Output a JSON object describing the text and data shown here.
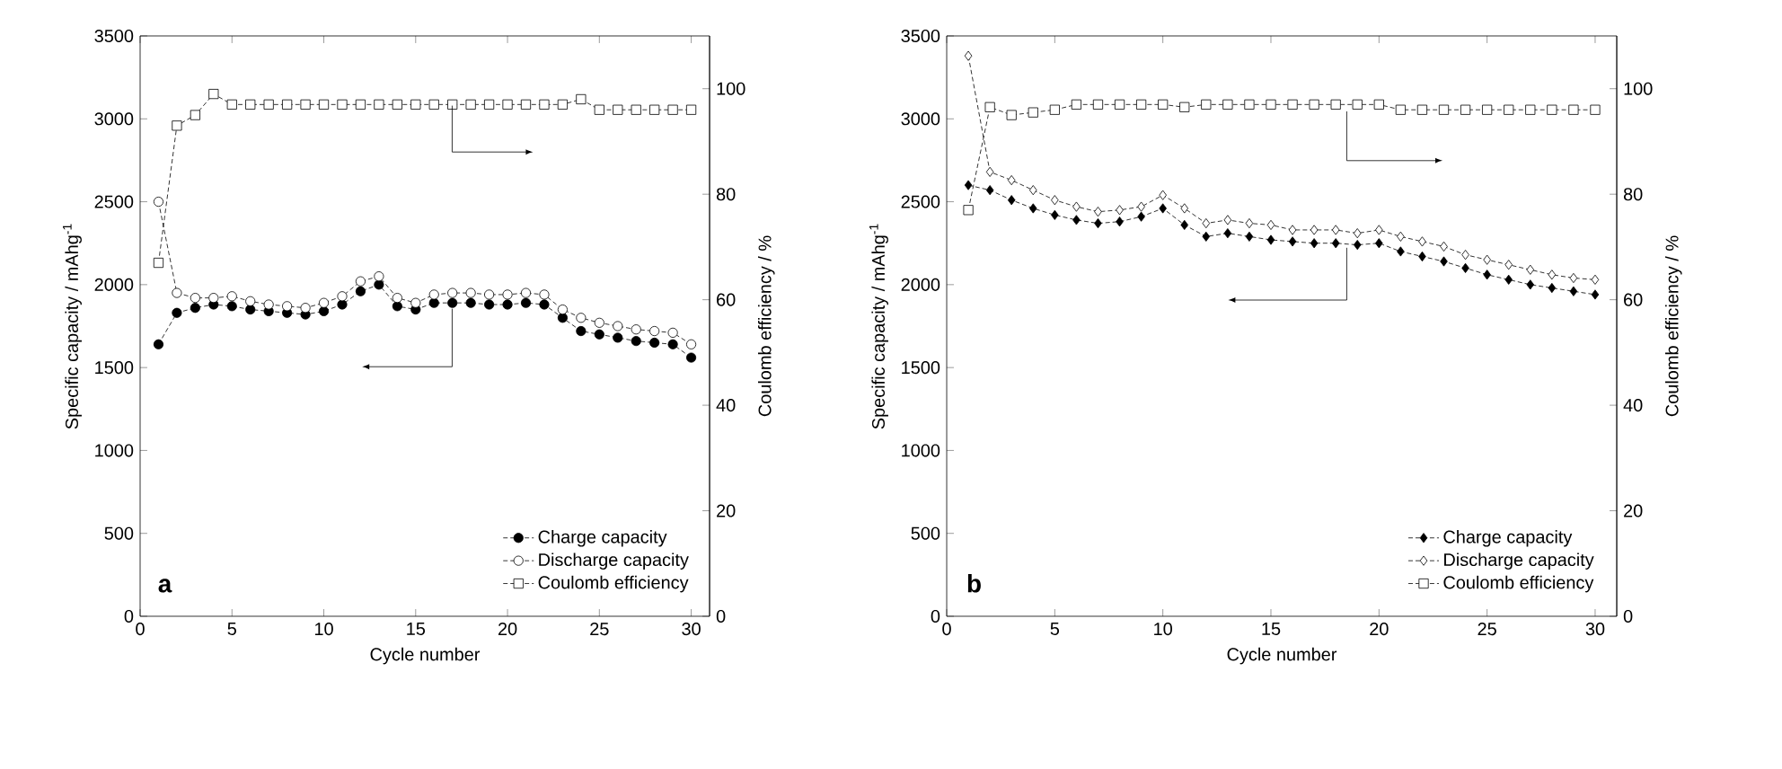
{
  "chart_data": [
    {
      "type": "line",
      "xlabel": "Cycle number",
      "ylabel": "Specific capacity / mAhg$^{-1}$",
      "y2label": "Coulomb efficiency / %",
      "annotations": [
        "a"
      ],
      "legend": "bottom right",
      "line_style": "dashed",
      "grid": false,
      "x": [
        1,
        2,
        3,
        4,
        5,
        6,
        7,
        8,
        9,
        10,
        11,
        12,
        13,
        14,
        15,
        16,
        17,
        18,
        19,
        20,
        21,
        22,
        23,
        24,
        25,
        26,
        27,
        28,
        29,
        30
      ],
      "xlim": [
        0,
        31
      ],
      "xticks": [
        0,
        5,
        10,
        15,
        20,
        25,
        30
      ],
      "ylim": [
        0,
        3500
      ],
      "yticks": [
        0,
        500,
        1000,
        1500,
        2000,
        2500,
        3000,
        3500
      ],
      "y2lim": [
        0,
        110
      ],
      "y2ticks": [
        0,
        20,
        40,
        60,
        80,
        100
      ],
      "series": [
        {
          "name": "Charge capacity",
          "color": "#000000",
          "marker": "circle",
          "values": [
            1640,
            1830,
            1860,
            1880,
            1870,
            1850,
            1840,
            1830,
            1820,
            1840,
            1880,
            1960,
            2000,
            1870,
            1850,
            1890,
            1890,
            1890,
            1880,
            1880,
            1890,
            1880,
            1800,
            1720,
            1700,
            1680,
            1660,
            1650,
            1640,
            1560
          ]
        },
        {
          "name": "Discharge capacity",
          "color": "#000000",
          "marker": "circle",
          "values": [
            2500,
            1950,
            1920,
            1920,
            1930,
            1900,
            1880,
            1870,
            1860,
            1890,
            1930,
            2020,
            2050,
            1920,
            1890,
            1940,
            1950,
            1950,
            1940,
            1940,
            1950,
            1940,
            1850,
            1800,
            1770,
            1750,
            1730,
            1720,
            1710,
            1640
          ]
        },
        {
          "name": "Coulomb efficiency",
          "color": "#000000",
          "marker": "square",
          "axis": "y2",
          "values": [
            67,
            93,
            95,
            99,
            97,
            97,
            97,
            97,
            97,
            97,
            97,
            97,
            97,
            97,
            97,
            97,
            97,
            97,
            97,
            97,
            97,
            97,
            97,
            98,
            96,
            96,
            96,
            96,
            96,
            96
          ]
        }
      ]
    },
    {
      "type": "line",
      "xlabel": "Cycle number",
      "ylabel": "Specific capacity / mAhg$^{-1}$",
      "y2label": "Coulomb efficiency / %",
      "annotations": [
        "b"
      ],
      "legend": "bottom right",
      "line_style": "dashed",
      "grid": false,
      "x": [
        1,
        2,
        3,
        4,
        5,
        6,
        7,
        8,
        9,
        10,
        11,
        12,
        13,
        14,
        15,
        16,
        17,
        18,
        19,
        20,
        21,
        22,
        23,
        24,
        25,
        26,
        27,
        28,
        29,
        30
      ],
      "xlim": [
        0,
        31
      ],
      "xticks": [
        0,
        5,
        10,
        15,
        20,
        25,
        30
      ],
      "ylim": [
        0,
        3500
      ],
      "yticks": [
        0,
        500,
        1000,
        1500,
        2000,
        2500,
        3000,
        3500
      ],
      "y2lim": [
        0,
        110
      ],
      "y2ticks": [
        0,
        20,
        40,
        60,
        80,
        100
      ],
      "series": [
        {
          "name": "Charge capacity",
          "color": "#000000",
          "marker": "diamond",
          "values": [
            2600,
            2570,
            2510,
            2460,
            2420,
            2390,
            2370,
            2380,
            2410,
            2460,
            2360,
            2290,
            2310,
            2290,
            2270,
            2260,
            2250,
            2250,
            2240,
            2250,
            2200,
            2170,
            2140,
            2100,
            2060,
            2030,
            2000,
            1980,
            1960,
            1940
          ]
        },
        {
          "name": "Discharge capacity",
          "color": "#000000",
          "marker": "diamond",
          "values": [
            3380,
            2680,
            2630,
            2570,
            2510,
            2470,
            2440,
            2450,
            2470,
            2540,
            2460,
            2370,
            2390,
            2370,
            2360,
            2330,
            2330,
            2330,
            2310,
            2330,
            2290,
            2260,
            2230,
            2180,
            2150,
            2120,
            2090,
            2060,
            2040,
            2030
          ]
        },
        {
          "name": "Coulomb efficiency",
          "color": "#000000",
          "marker": "square",
          "axis": "y2",
          "values": [
            77,
            96.5,
            95,
            95.5,
            96,
            97,
            97,
            97,
            97,
            97,
            96.5,
            97,
            97,
            97,
            97,
            97,
            97,
            97,
            97,
            97,
            96,
            96,
            96,
            96,
            96,
            96,
            96,
            96,
            96,
            96
          ]
        }
      ]
    }
  ]
}
